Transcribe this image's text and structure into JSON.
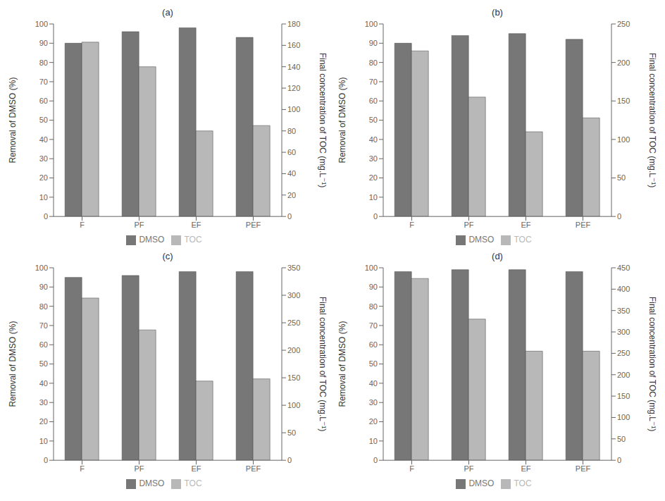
{
  "chart_data": [
    {
      "type": "bar",
      "title": "(a)",
      "categories": [
        "F",
        "PF",
        "EF",
        "PEF"
      ],
      "series": [
        {
          "name": "DMSO",
          "color": "#777777",
          "values": [
            90,
            96,
            98,
            93
          ]
        },
        {
          "name": "TOC",
          "color": "#b8b8b8",
          "values": [
            163,
            140,
            80,
            85
          ],
          "axis": "y2"
        }
      ],
      "ylabel": "Removal of DMSO (%)",
      "y2label": "Final concentration of TOC (mg.L⁻¹)",
      "ylim": [
        0,
        100
      ],
      "yticks": [
        0,
        10,
        20,
        30,
        40,
        50,
        60,
        70,
        80,
        90,
        100
      ],
      "y2lim": [
        0,
        180
      ],
      "y2ticks": [
        0,
        20,
        40,
        60,
        80,
        100,
        120,
        140,
        160,
        180
      ],
      "grid": false,
      "legend": "bottom"
    },
    {
      "type": "bar",
      "title": "(b)",
      "categories": [
        "F",
        "PF",
        "EF",
        "PEF"
      ],
      "series": [
        {
          "name": "DMSO",
          "color": "#777777",
          "values": [
            90,
            94,
            95,
            92
          ]
        },
        {
          "name": "TOC",
          "color": "#b8b8b8",
          "values": [
            215,
            155,
            110,
            128
          ],
          "axis": "y2"
        }
      ],
      "ylabel": "Removal of DMSO (%)",
      "y2label": "Final concentration of TOC (mg.L⁻¹)",
      "ylim": [
        0,
        100
      ],
      "yticks": [
        0,
        10,
        20,
        30,
        40,
        50,
        60,
        70,
        80,
        90,
        100
      ],
      "y2lim": [
        0,
        250
      ],
      "y2ticks": [
        0,
        50,
        100,
        150,
        200,
        250
      ],
      "grid": false,
      "legend": "bottom"
    },
    {
      "type": "bar",
      "title": "(c)",
      "categories": [
        "F",
        "PF",
        "EF",
        "PEF"
      ],
      "series": [
        {
          "name": "DMSO",
          "color": "#777777",
          "values": [
            95,
            96,
            98,
            98
          ]
        },
        {
          "name": "TOC",
          "color": "#b8b8b8",
          "values": [
            295,
            237,
            144,
            148
          ],
          "axis": "y2"
        }
      ],
      "ylabel": "Removal of DMSO (%)",
      "y2label": "Final concentration of TOC (mg.L⁻¹)",
      "ylim": [
        0,
        100
      ],
      "yticks": [
        0,
        10,
        20,
        30,
        40,
        50,
        60,
        70,
        80,
        90,
        100
      ],
      "y2lim": [
        0,
        350
      ],
      "y2ticks": [
        0,
        50,
        100,
        150,
        200,
        250,
        300,
        350
      ],
      "grid": false,
      "legend": "bottom"
    },
    {
      "type": "bar",
      "title": "(d)",
      "categories": [
        "F",
        "PF",
        "EF",
        "PEF"
      ],
      "series": [
        {
          "name": "DMSO",
          "color": "#777777",
          "values": [
            98,
            99,
            99,
            98
          ]
        },
        {
          "name": "TOC",
          "color": "#b8b8b8",
          "values": [
            425,
            330,
            255,
            255
          ],
          "axis": "y2"
        }
      ],
      "ylabel": "Removal of DMSO (%)",
      "y2label": "Final concentration of TOC (mg.L⁻¹)",
      "ylim": [
        0,
        100
      ],
      "yticks": [
        0,
        10,
        20,
        30,
        40,
        50,
        60,
        70,
        80,
        90,
        100
      ],
      "y2lim": [
        0,
        450
      ],
      "y2ticks": [
        0,
        50,
        100,
        150,
        200,
        250,
        300,
        350,
        400,
        450
      ],
      "grid": false,
      "legend": "bottom"
    }
  ]
}
